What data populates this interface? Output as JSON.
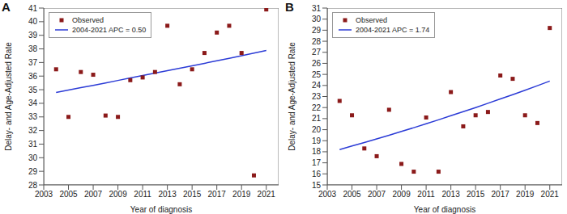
{
  "chart_data": [
    {
      "type": "scatter",
      "title": "A",
      "x_label": "Year of diagnosis",
      "y_label": "Delay- and Age-Adjusted Rate",
      "x": [
        2004,
        2005,
        2006,
        2007,
        2008,
        2009,
        2010,
        2011,
        2012,
        2013,
        2014,
        2015,
        2016,
        2017,
        2018,
        2019,
        2020,
        2021
      ],
      "series": [
        {
          "name": "Observed",
          "type": "scatter",
          "marker": "square",
          "color": "#8b1a1a",
          "values": [
            36.5,
            33.0,
            36.3,
            36.1,
            33.1,
            33.0,
            35.7,
            35.9,
            36.3,
            39.7,
            35.4,
            36.5,
            37.7,
            39.2,
            39.7,
            37.7,
            28.7,
            40.9
          ]
        },
        {
          "name": "2004-2021 APC = 0.50",
          "type": "line",
          "line_style": "solid",
          "color": "#2b3bd6",
          "values": [
            34.8,
            34.97,
            35.15,
            35.32,
            35.5,
            35.68,
            35.86,
            36.04,
            36.22,
            36.4,
            36.58,
            36.76,
            36.94,
            37.13,
            37.31,
            37.5,
            37.69,
            37.88
          ]
        }
      ],
      "xlim": [
        2003,
        2022
      ],
      "xticks": [
        2003,
        2005,
        2007,
        2009,
        2011,
        2013,
        2015,
        2017,
        2019,
        2021
      ],
      "ylim": [
        28,
        41
      ],
      "yticks": [
        28,
        29,
        30,
        31,
        32,
        33,
        34,
        35,
        36,
        37,
        38,
        39,
        40,
        41
      ],
      "grid": false,
      "legend": "upper left"
    },
    {
      "type": "scatter",
      "title": "B",
      "x_label": "Year of diagnosis",
      "y_label": "Delay- and Age-Adjusted Rate",
      "x": [
        2004,
        2005,
        2006,
        2007,
        2008,
        2009,
        2010,
        2011,
        2012,
        2013,
        2014,
        2015,
        2016,
        2017,
        2018,
        2019,
        2020,
        2021
      ],
      "series": [
        {
          "name": "Observed",
          "type": "scatter",
          "marker": "square",
          "color": "#8b1a1a",
          "values": [
            22.6,
            21.3,
            18.3,
            17.6,
            21.8,
            16.9,
            16.2,
            21.1,
            16.2,
            23.4,
            20.3,
            21.3,
            21.6,
            24.9,
            24.6,
            21.3,
            20.6,
            29.2
          ]
        },
        {
          "name": "2004-2021 APC = 1.74",
          "type": "line",
          "line_style": "solid",
          "color": "#2b3bd6",
          "values": [
            18.2,
            18.52,
            18.84,
            19.17,
            19.5,
            19.84,
            20.18,
            20.54,
            20.89,
            21.26,
            21.63,
            22.0,
            22.39,
            22.78,
            23.17,
            23.57,
            23.98,
            24.4
          ]
        }
      ],
      "xlim": [
        2003,
        2022
      ],
      "xticks": [
        2003,
        2005,
        2007,
        2009,
        2011,
        2013,
        2015,
        2017,
        2019,
        2021
      ],
      "ylim": [
        15,
        31
      ],
      "yticks": [
        15,
        16,
        17,
        18,
        19,
        20,
        21,
        22,
        23,
        24,
        25,
        26,
        27,
        28,
        29,
        30,
        31
      ],
      "grid": false,
      "legend": "upper left"
    }
  ]
}
